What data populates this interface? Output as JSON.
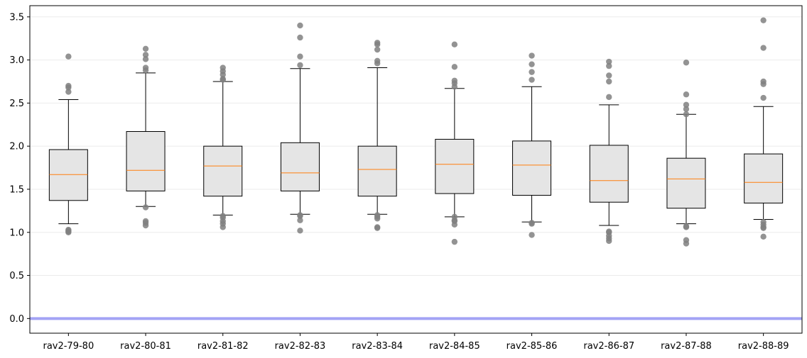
{
  "chart_data": {
    "type": "box",
    "categories": [
      "rav2-79-80",
      "rav2-80-81",
      "rav2-81-82",
      "rav2-82-83",
      "rav2-83-84",
      "rav2-84-85",
      "rav2-85-86",
      "rav2-86-87",
      "rav2-87-88",
      "rav2-88-89"
    ],
    "y_ticks": [
      "0.0",
      "0.5",
      "1.0",
      "1.5",
      "2.0",
      "2.5",
      "3.0",
      "3.5"
    ],
    "ylim": [
      -0.17,
      3.63
    ],
    "grid": "horizontal",
    "reference_line": 0.0,
    "colors": {
      "box_fill": "#e5e5e5",
      "box_edge": "#000000",
      "median": "#ff7f0e",
      "outlier": "#808080",
      "reference_line": "#a3a3f5",
      "grid": "#ebebeb"
    },
    "boxes": [
      {
        "whisker_low": 1.1,
        "q1": 1.37,
        "median": 1.67,
        "q3": 1.96,
        "whisker_high": 2.54,
        "outliers": [
          1.0,
          1.01,
          1.02,
          1.03,
          2.63,
          2.68,
          2.7,
          3.04
        ]
      },
      {
        "whisker_low": 1.3,
        "q1": 1.48,
        "median": 1.72,
        "q3": 2.17,
        "whisker_high": 2.85,
        "outliers": [
          1.08,
          1.11,
          1.13,
          1.29,
          2.88,
          2.91,
          3.01,
          3.06,
          3.13
        ]
      },
      {
        "whisker_low": 1.2,
        "q1": 1.42,
        "median": 1.77,
        "q3": 2.0,
        "whisker_high": 2.75,
        "outliers": [
          1.06,
          1.1,
          1.13,
          1.17,
          1.19,
          2.77,
          2.78,
          2.83,
          2.87,
          2.91
        ]
      },
      {
        "whisker_low": 1.21,
        "q1": 1.48,
        "median": 1.69,
        "q3": 2.04,
        "whisker_high": 2.9,
        "outliers": [
          1.02,
          1.14,
          1.19,
          1.2,
          2.94,
          3.04,
          3.26,
          3.4
        ]
      },
      {
        "whisker_low": 1.21,
        "q1": 1.42,
        "median": 1.73,
        "q3": 2.0,
        "whisker_high": 2.91,
        "outliers": [
          1.05,
          1.06,
          1.16,
          1.18,
          1.2,
          2.96,
          2.99,
          3.12,
          3.18,
          3.2
        ]
      },
      {
        "whisker_low": 1.18,
        "q1": 1.45,
        "median": 1.79,
        "q3": 2.08,
        "whisker_high": 2.67,
        "outliers": [
          0.89,
          1.09,
          1.13,
          1.14,
          1.18,
          2.69,
          2.73,
          2.76,
          2.92,
          3.18
        ]
      },
      {
        "whisker_low": 1.12,
        "q1": 1.43,
        "median": 1.78,
        "q3": 2.06,
        "whisker_high": 2.69,
        "outliers": [
          0.97,
          1.1,
          1.11,
          2.77,
          2.86,
          2.95,
          3.05
        ]
      },
      {
        "whisker_low": 1.08,
        "q1": 1.35,
        "median": 1.6,
        "q3": 2.01,
        "whisker_high": 2.48,
        "outliers": [
          0.9,
          0.93,
          0.96,
          1.0,
          1.01,
          2.57,
          2.75,
          2.82,
          2.93,
          2.98
        ]
      },
      {
        "whisker_low": 1.1,
        "q1": 1.28,
        "median": 1.62,
        "q3": 1.86,
        "whisker_high": 2.37,
        "outliers": [
          0.87,
          0.91,
          1.06,
          1.07,
          2.37,
          2.43,
          2.48,
          2.6,
          2.97
        ]
      },
      {
        "whisker_low": 1.15,
        "q1": 1.34,
        "median": 1.58,
        "q3": 1.91,
        "whisker_high": 2.46,
        "outliers": [
          0.95,
          1.05,
          1.06,
          1.09,
          1.12,
          2.56,
          2.72,
          2.75,
          3.14,
          3.46
        ]
      }
    ]
  }
}
